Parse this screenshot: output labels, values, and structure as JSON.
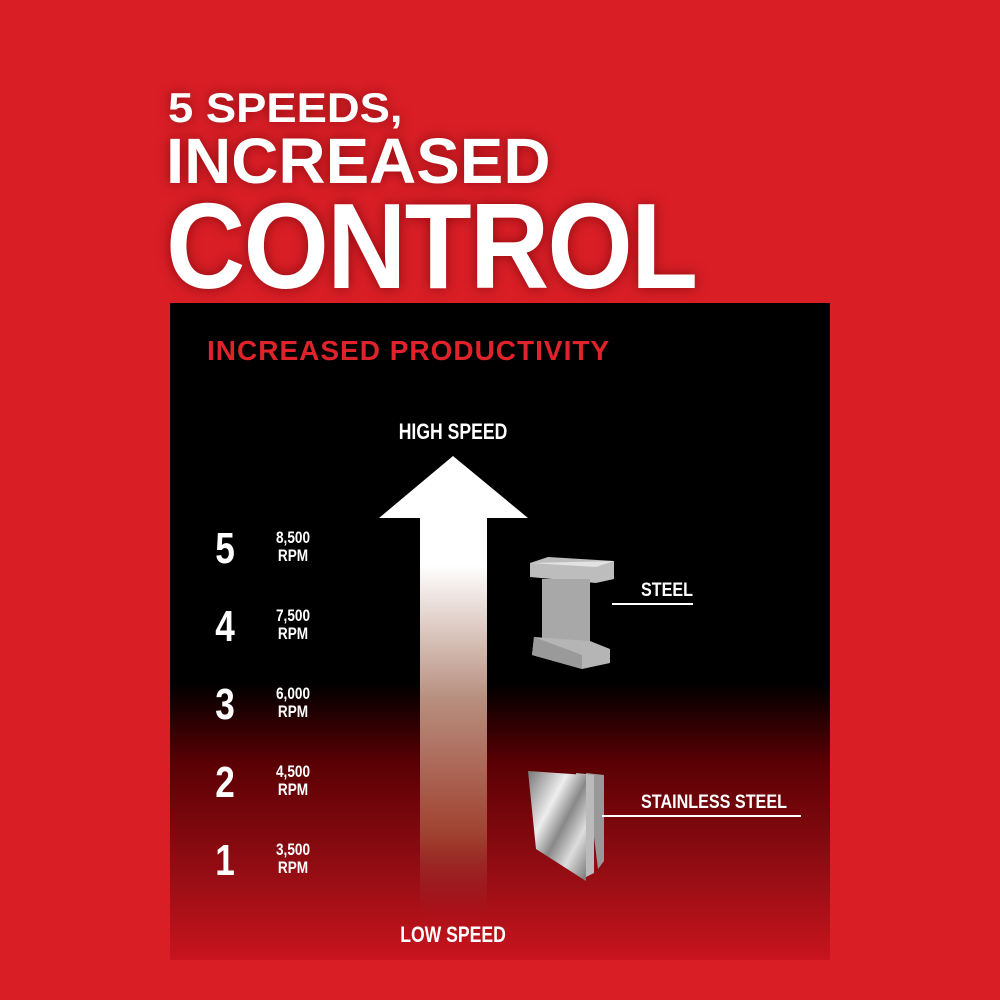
{
  "headline": {
    "line1": "5 SPEEDS,",
    "line2": "INCREASED",
    "line3": "CONTROL"
  },
  "panel": {
    "subtitle": "INCREASED PRODUCTIVITY",
    "arrow": {
      "top_label": "HIGH SPEED",
      "bottom_label": "LOW SPEED"
    },
    "speeds": [
      {
        "level": "5",
        "rpm": "8,500",
        "unit": "RPM"
      },
      {
        "level": "4",
        "rpm": "7,500",
        "unit": "RPM"
      },
      {
        "level": "3",
        "rpm": "6,000",
        "unit": "RPM"
      },
      {
        "level": "2",
        "rpm": "4,500",
        "unit": "RPM"
      },
      {
        "level": "1",
        "rpm": "3,500",
        "unit": "RPM"
      }
    ],
    "materials": [
      {
        "label": "STEEL",
        "icon": "i-beam-icon"
      },
      {
        "label": "STAINLESS STEEL",
        "icon": "metal-sheets-icon"
      }
    ]
  },
  "colors": {
    "background": "#d91e26",
    "subtitle": "#e0232b",
    "panel_top": "#000000"
  }
}
